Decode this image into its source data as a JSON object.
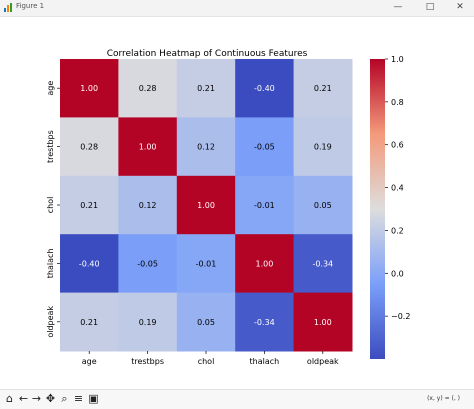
{
  "window": {
    "title": "Figure 1",
    "minimize": "—",
    "maximize": "□",
    "close": "✕"
  },
  "toolbar": {
    "home": "⌂",
    "back": "←",
    "forward": "→",
    "pan": "✥",
    "zoom": "⌕",
    "configure": "≡",
    "save": "▣",
    "coords": "(x, y) = (, )"
  },
  "colors": {
    "cmap_low": "#3b4cc0",
    "cmap_mid": "#dddddd",
    "cmap_high": "#b40426"
  },
  "chart_data": {
    "type": "heatmap",
    "title": "Correlation Heatmap of Continuous Features",
    "x_categories": [
      "age",
      "trestbps",
      "chol",
      "thalach",
      "oldpeak"
    ],
    "y_categories": [
      "age",
      "trestbps",
      "chol",
      "thalach",
      "oldpeak"
    ],
    "values": [
      [
        1.0,
        0.28,
        0.21,
        -0.4,
        0.21
      ],
      [
        0.28,
        1.0,
        0.12,
        -0.05,
        0.19
      ],
      [
        0.21,
        0.12,
        1.0,
        -0.01,
        0.05
      ],
      [
        -0.4,
        -0.05,
        -0.01,
        1.0,
        -0.34
      ],
      [
        0.21,
        0.19,
        0.05,
        -0.34,
        1.0
      ]
    ],
    "cell_labels": [
      [
        "1.00",
        "0.28",
        "0.21",
        "-0.40",
        "0.21"
      ],
      [
        "0.28",
        "1.00",
        "0.12",
        "-0.05",
        "0.19"
      ],
      [
        "0.21",
        "0.12",
        "1.00",
        "-0.01",
        "0.05"
      ],
      [
        "-0.40",
        "-0.05",
        "-0.01",
        "1.00",
        "-0.34"
      ],
      [
        "0.21",
        "0.19",
        "0.05",
        "-0.34",
        "1.00"
      ]
    ],
    "colorbar": {
      "vmin": -0.4,
      "vmax": 1.0,
      "ticks": [
        -0.2,
        0.0,
        0.2,
        0.4,
        0.6,
        0.8,
        1.0
      ],
      "tick_labels": [
        "−0.2",
        "0.0",
        "0.2",
        "0.4",
        "0.6",
        "0.8",
        "1.0"
      ]
    },
    "colormap": "coolwarm"
  }
}
